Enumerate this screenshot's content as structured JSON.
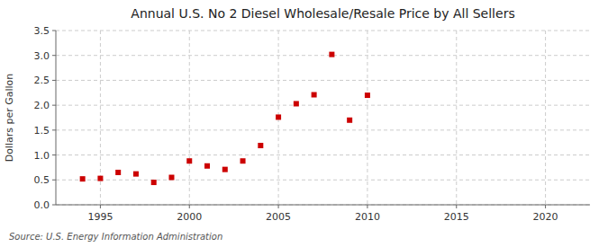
{
  "chart_data": {
    "type": "scatter",
    "title": "Annual U.S. No 2 Diesel Wholesale/Resale Price by All Sellers",
    "ylabel": "Dollars per Gallon",
    "annotations": [
      "Source: U.S. Energy Information Administration"
    ],
    "x": [
      1994,
      1995,
      1996,
      1997,
      1998,
      1999,
      2000,
      2001,
      2002,
      2003,
      2004,
      2005,
      2006,
      2007,
      2008,
      2009,
      2010
    ],
    "values": [
      0.52,
      0.53,
      0.65,
      0.62,
      0.45,
      0.55,
      0.88,
      0.78,
      0.71,
      0.88,
      1.19,
      1.76,
      2.03,
      2.21,
      3.02,
      1.7,
      2.2
    ],
    "xlim": [
      1992.5,
      2022.5
    ],
    "ylim": [
      0.0,
      3.5
    ],
    "xticks": [
      1995,
      2000,
      2005,
      2010,
      2015,
      2020
    ],
    "yticks": [
      {
        "value": 0.0,
        "label": "0.0"
      },
      0.5,
      {
        "value": 1.0,
        "label": "1.0"
      },
      1.5,
      {
        "value": 2.0,
        "label": "2.0"
      },
      2.5,
      {
        "value": 3.0,
        "label": "3.0"
      },
      3.5
    ],
    "color": "#cc0000",
    "marker": "square",
    "grid": true
  }
}
